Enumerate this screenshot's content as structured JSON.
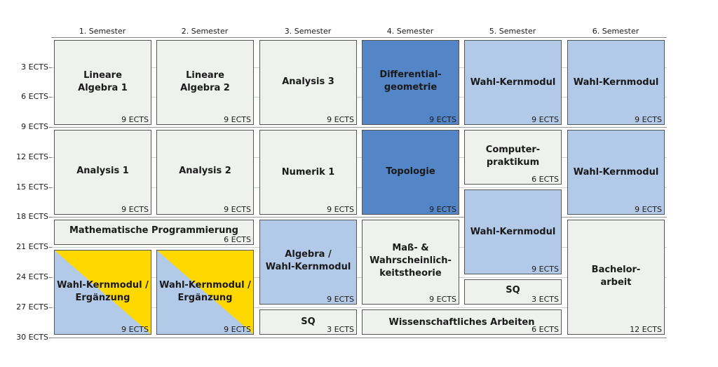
{
  "semesters": [
    "1. Semester",
    "2. Semester",
    "3. Semester",
    "4. Semester",
    "5. Semester",
    "6. Semester"
  ],
  "y_axis": [
    "3 ECTS",
    "6 ECTS",
    "9 ECTS",
    "12 ECTS",
    "15 ECTS",
    "18 ECTS",
    "21 ECTS",
    "24 ECTS",
    "27 ECTS",
    "30 ECTS"
  ],
  "colors": {
    "plain": "#eef1ee",
    "kern": "#b3c9e8",
    "geometry": "#5485c6",
    "erg": "#ffd800"
  },
  "modules": {
    "la1": {
      "title": "Lineare\nAlgebra 1",
      "ects": "9 ECTS"
    },
    "la2": {
      "title": "Lineare\nAlgebra 2",
      "ects": "9 ECTS"
    },
    "an3": {
      "title": "Analysis 3",
      "ects": "9 ECTS"
    },
    "diff": {
      "title": "Differential-\ngeometrie",
      "ects": "9 ECTS"
    },
    "wk5a": {
      "title": "Wahl-Kernmodul",
      "ects": "9 ECTS"
    },
    "wk6a": {
      "title": "Wahl-Kernmodul",
      "ects": "9 ECTS"
    },
    "an1": {
      "title": "Analysis 1",
      "ects": "9 ECTS"
    },
    "an2": {
      "title": "Analysis 2",
      "ects": "9 ECTS"
    },
    "num1": {
      "title": "Numerik 1",
      "ects": "9 ECTS"
    },
    "topo": {
      "title": "Topologie",
      "ects": "9 ECTS"
    },
    "cp": {
      "title": "Computer-\npraktikum",
      "ects": "6 ECTS"
    },
    "wk6b": {
      "title": "Wahl-Kernmodul",
      "ects": "9 ECTS"
    },
    "mp": {
      "title": "Mathematische Programmierung",
      "ects": "6 ECTS"
    },
    "alg": {
      "title": "Algebra /\nWahl-Kernmodul",
      "ects": "9 ECTS"
    },
    "mass": {
      "title": "Maß- &\nWahrscheinlich-\nkeitstheorie",
      "ects": "9 ECTS"
    },
    "wk5b": {
      "title": "Wahl-Kernmodul",
      "ects": "9 ECTS"
    },
    "ba": {
      "title": "Bachelor-\narbeit",
      "ects": "12 ECTS"
    },
    "erg1": {
      "title": "Wahl-Kernmodul /\nErgänzung",
      "ects": "9 ECTS"
    },
    "erg2": {
      "title": "Wahl-Kernmodul /\nErgänzung",
      "ects": "9 ECTS"
    },
    "sq5": {
      "title": "SQ",
      "ects": "3 ECTS"
    },
    "sq3": {
      "title": "SQ",
      "ects": "3 ECTS"
    },
    "wa": {
      "title": "Wissenschaftliches Arbeiten",
      "ects": "6 ECTS"
    }
  }
}
